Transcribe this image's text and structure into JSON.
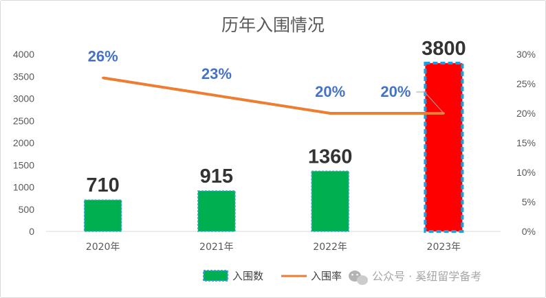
{
  "chart_data": {
    "type": "bar",
    "title": "历年入围情况",
    "categories": [
      "2020年",
      "2021年",
      "2022年",
      "2023年"
    ],
    "series": [
      {
        "name": "入围数",
        "kind": "bar",
        "axis": "left",
        "values": [
          710,
          915,
          1360,
          3800
        ]
      },
      {
        "name": "入围率",
        "kind": "line",
        "axis": "right",
        "values": [
          0.26,
          0.23,
          0.2,
          0.2
        ]
      }
    ],
    "bar_labels": [
      "710",
      "915",
      "1360",
      "3800"
    ],
    "line_labels": [
      "26%",
      "23%",
      "20%",
      "20%"
    ],
    "y_left": {
      "ylim": [
        0,
        4000
      ],
      "ticks": [
        "0",
        "500",
        "1000",
        "1500",
        "2000",
        "2500",
        "3000",
        "3500",
        "4000"
      ]
    },
    "y_right": {
      "ylim": [
        0,
        0.3
      ],
      "ticks": [
        "0%",
        "5%",
        "10%",
        "15%",
        "20%",
        "25%",
        "30%"
      ]
    },
    "highlight_index": 3,
    "grid": false,
    "legend_position": "bottom",
    "colors": {
      "bar": "#00b050",
      "bar_border": "#3aa6d8",
      "highlight_bar": "#ff0000",
      "highlight_border": "#1aa0e0",
      "line": "#ed7d31",
      "pct_label": "#4472c4",
      "bar_label": "#333333",
      "axis_text": "#595959"
    }
  },
  "watermark": {
    "icon": "wechat-icon",
    "text": "公众号 · 奚纽留学备考"
  }
}
